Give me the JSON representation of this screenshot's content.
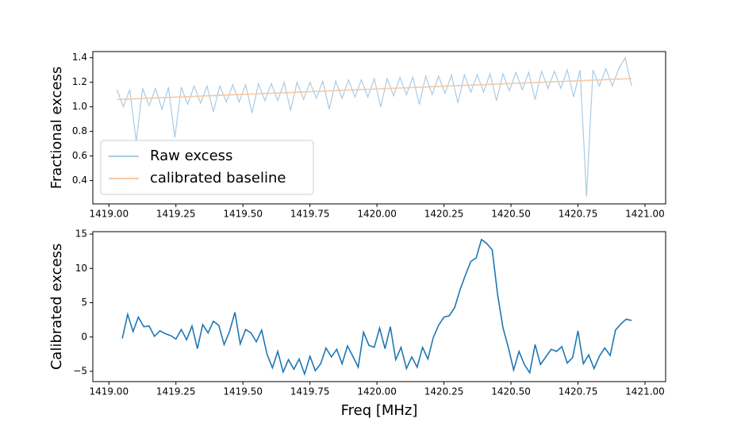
{
  "chart_data": [
    {
      "type": "line",
      "ylabel": "Fractional excess",
      "xlim": [
        1418.94,
        1421.077
      ],
      "ylim": [
        0.21,
        1.45
      ],
      "xticks": [
        {
          "value": 1419,
          "label": "1419.00"
        },
        {
          "value": 1419.25,
          "label": "1419.25"
        },
        {
          "value": 1419.5,
          "label": "1419.50"
        },
        {
          "value": 1419.75,
          "label": "1419.75"
        },
        {
          "value": 1420,
          "label": "1420.00"
        },
        {
          "value": 1420.25,
          "label": "1420.25"
        },
        {
          "value": 1420.5,
          "label": "1420.50"
        },
        {
          "value": 1420.75,
          "label": "1420.75"
        },
        {
          "value": 1421,
          "label": "1421.00"
        }
      ],
      "yticks": [
        0.4,
        0.6,
        0.8,
        {
          "value": 1,
          "label": "1.0"
        },
        1.2,
        1.4
      ],
      "legend": "lower left",
      "series": [
        {
          "name": "Raw excess",
          "color": "#a9cbe5",
          "x": [
            1419.03,
            1419.054,
            1419.078,
            1419.102,
            1419.126,
            1419.15,
            1419.174,
            1419.198,
            1419.222,
            1419.246,
            1419.27,
            1419.294,
            1419.318,
            1419.342,
            1419.366,
            1419.39,
            1419.414,
            1419.438,
            1419.462,
            1419.486,
            1419.51,
            1419.534,
            1419.558,
            1419.582,
            1419.606,
            1419.63,
            1419.654,
            1419.678,
            1419.702,
            1419.726,
            1419.75,
            1419.774,
            1419.798,
            1419.822,
            1419.846,
            1419.87,
            1419.894,
            1419.918,
            1419.942,
            1419.966,
            1419.99,
            1420.014,
            1420.038,
            1420.062,
            1420.086,
            1420.11,
            1420.134,
            1420.158,
            1420.182,
            1420.206,
            1420.23,
            1420.254,
            1420.278,
            1420.302,
            1420.326,
            1420.35,
            1420.374,
            1420.398,
            1420.422,
            1420.446,
            1420.47,
            1420.494,
            1420.518,
            1420.542,
            1420.566,
            1420.59,
            1420.614,
            1420.638,
            1420.662,
            1420.686,
            1420.71,
            1420.734,
            1420.758,
            1420.782,
            1420.806,
            1420.83,
            1420.854,
            1420.878,
            1420.902,
            1420.926,
            1420.95
          ],
          "values": [
            1.14,
            1.0,
            1.14,
            0.72,
            1.15,
            1.01,
            1.15,
            0.98,
            1.16,
            0.75,
            1.16,
            1.02,
            1.17,
            1.03,
            1.17,
            0.96,
            1.17,
            1.04,
            1.18,
            1.04,
            1.18,
            0.95,
            1.19,
            1.05,
            1.19,
            1.05,
            1.2,
            0.97,
            1.2,
            1.06,
            1.2,
            1.07,
            1.21,
            0.98,
            1.21,
            1.07,
            1.22,
            1.08,
            1.22,
            1.08,
            1.23,
            1.0,
            1.23,
            1.09,
            1.24,
            1.1,
            1.24,
            1.02,
            1.25,
            1.1,
            1.25,
            1.11,
            1.26,
            1.03,
            1.26,
            1.12,
            1.26,
            1.12,
            1.27,
            1.05,
            1.27,
            1.13,
            1.28,
            1.14,
            1.28,
            1.06,
            1.29,
            1.15,
            1.29,
            1.15,
            1.3,
            1.08,
            1.3,
            0.27,
            1.3,
            1.17,
            1.31,
            1.17,
            1.31,
            1.4,
            1.17
          ]
        },
        {
          "name": "calibrated baseline",
          "color": "#f6c9a3",
          "x": [
            1419.03,
            1420.95
          ],
          "values": [
            1.06,
            1.23
          ]
        }
      ]
    },
    {
      "type": "line",
      "ylabel": "Calibrated excess",
      "xlabel": "Freq [MHz]",
      "xlim": [
        1418.94,
        1421.077
      ],
      "ylim": [
        -6.5,
        15.35
      ],
      "xticks": [
        {
          "value": 1419,
          "label": "1419.00"
        },
        {
          "value": 1419.25,
          "label": "1419.25"
        },
        {
          "value": 1419.5,
          "label": "1419.50"
        },
        {
          "value": 1419.75,
          "label": "1419.75"
        },
        {
          "value": 1420,
          "label": "1420.00"
        },
        {
          "value": 1420.25,
          "label": "1420.25"
        },
        {
          "value": 1420.5,
          "label": "1420.50"
        },
        {
          "value": 1420.75,
          "label": "1420.75"
        },
        {
          "value": 1421,
          "label": "1421.00"
        }
      ],
      "yticks": [
        {
          "value": -5,
          "label": "−5"
        },
        0,
        5,
        10,
        15
      ],
      "series": [
        {
          "color": "#1f77b4",
          "x": [
            1419.05,
            1419.07,
            1419.09,
            1419.11,
            1419.13,
            1419.15,
            1419.17,
            1419.19,
            1419.21,
            1419.23,
            1419.25,
            1419.27,
            1419.29,
            1419.31,
            1419.33,
            1419.35,
            1419.37,
            1419.39,
            1419.41,
            1419.43,
            1419.45,
            1419.47,
            1419.49,
            1419.51,
            1419.53,
            1419.55,
            1419.57,
            1419.59,
            1419.61,
            1419.63,
            1419.65,
            1419.67,
            1419.69,
            1419.71,
            1419.73,
            1419.75,
            1419.77,
            1419.79,
            1419.81,
            1419.83,
            1419.85,
            1419.87,
            1419.89,
            1419.91,
            1419.93,
            1419.95,
            1419.97,
            1419.99,
            1420.01,
            1420.03,
            1420.05,
            1420.07,
            1420.09,
            1420.11,
            1420.13,
            1420.15,
            1420.17,
            1420.19,
            1420.21,
            1420.23,
            1420.25,
            1420.27,
            1420.29,
            1420.31,
            1420.33,
            1420.35,
            1420.37,
            1420.39,
            1420.41,
            1420.43,
            1420.45,
            1420.47,
            1420.49,
            1420.51,
            1420.53,
            1420.55,
            1420.57,
            1420.59,
            1420.61,
            1420.63,
            1420.65,
            1420.67,
            1420.69,
            1420.71,
            1420.73,
            1420.75,
            1420.77,
            1420.79,
            1420.81,
            1420.83,
            1420.85,
            1420.87,
            1420.89,
            1420.91,
            1420.93,
            1420.95
          ],
          "values": [
            -0.2,
            3.3,
            0.8,
            2.9,
            1.5,
            1.6,
            0.1,
            0.9,
            0.5,
            0.2,
            -0.3,
            1.1,
            -0.4,
            1.6,
            -1.7,
            1.8,
            0.6,
            2.3,
            1.7,
            -1.1,
            0.8,
            3.6,
            -1.0,
            1.1,
            0.6,
            -0.7,
            1.0,
            -2.5,
            -4.5,
            -2.1,
            -5.1,
            -3.3,
            -4.7,
            -3.2,
            -5.4,
            -2.8,
            -4.9,
            -3.9,
            -1.6,
            -2.9,
            -1.8,
            -3.9,
            -1.3,
            -2.8,
            -4.4,
            0.7,
            -1.2,
            -1.5,
            1.3,
            -1.7,
            1.5,
            -3.3,
            -1.5,
            -4.6,
            -2.9,
            -4.4,
            -1.5,
            -3.2,
            -0.1,
            1.7,
            2.9,
            3.1,
            4.3,
            6.9,
            9.0,
            11.0,
            11.5,
            14.2,
            13.6,
            12.7,
            6.2,
            1.4,
            -1.5,
            -4.8,
            -2.1,
            -4.0,
            -5.2,
            -1.1,
            -4.0,
            -2.9,
            -1.8,
            -2.1,
            -1.4,
            -3.8,
            -3.0,
            0.9,
            -3.9,
            -2.6,
            -4.6,
            -2.8,
            -1.6,
            -2.7,
            1.0,
            1.9,
            2.6,
            2.4
          ]
        }
      ]
    }
  ]
}
